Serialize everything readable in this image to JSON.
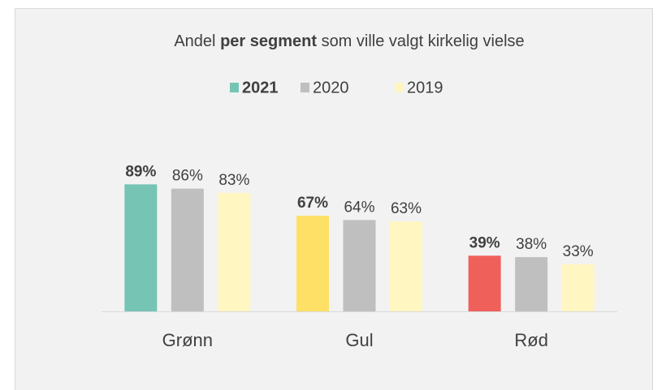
{
  "chart_data": {
    "type": "bar",
    "title_parts": [
      "Andel",
      "per segment",
      "som ville valgt kirkelig vielse"
    ],
    "categories": [
      "Grønn",
      "Gul",
      "Rød"
    ],
    "series": [
      {
        "name": "2021",
        "color": "#76c4b4",
        "colors": [
          "#76c4b4",
          "#fee066",
          "#f0605b"
        ],
        "bold": true,
        "values": [
          89,
          67,
          39
        ],
        "value_labels": [
          "89%",
          "67%",
          "39%"
        ]
      },
      {
        "name": "2020",
        "color": "#bfbfbf",
        "bold": false,
        "values": [
          86,
          64,
          38
        ],
        "value_labels": [
          "86%",
          "64%",
          "38%"
        ]
      },
      {
        "name": "2019",
        "color": "#fff6c2",
        "bold": false,
        "values": [
          83,
          63,
          33
        ],
        "value_labels": [
          "83%",
          "63%",
          "33%"
        ]
      }
    ],
    "ylim": [
      0,
      100
    ],
    "legend": "top"
  }
}
